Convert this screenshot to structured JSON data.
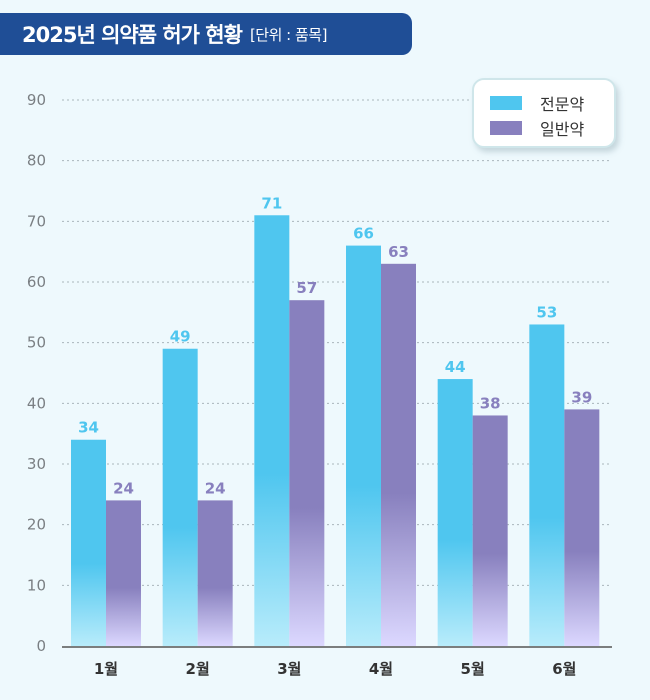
{
  "header": {
    "title": "2025년 의약품 허가 현황",
    "unit": "[단위 : 품목]"
  },
  "colors": {
    "title_bg": "#1f4e96",
    "series_prescription": "#4fc6ef",
    "series_otc": "#8880be",
    "background": "#eef9fd"
  },
  "chart_data": {
    "type": "bar",
    "title": "2025년 의약품 허가 현황",
    "unit": "[단위 : 품목]",
    "categories": [
      "1월",
      "2월",
      "3월",
      "4월",
      "5월",
      "6월"
    ],
    "series": [
      {
        "name": "전문약",
        "color": "#4fc6ef",
        "values": [
          34,
          49,
          71,
          66,
          44,
          53
        ]
      },
      {
        "name": "일반약",
        "color": "#8880be",
        "values": [
          24,
          24,
          57,
          63,
          38,
          39
        ]
      }
    ],
    "y_ticks": [
      "0",
      "10",
      "20",
      "30",
      "40",
      "50",
      "60",
      "70",
      "80",
      "90"
    ],
    "ylim": [
      0,
      90
    ],
    "grid": true,
    "legend_position": "top-right"
  }
}
